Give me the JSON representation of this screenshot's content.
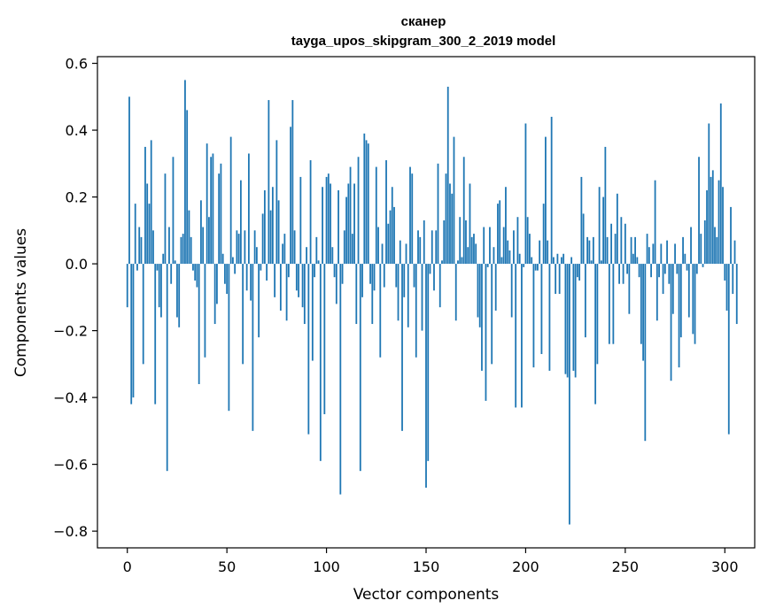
{
  "chart_data": {
    "type": "bar",
    "title": "сканер",
    "subtitle": "tayga_upos_skipgram_300_2_2019 model",
    "xlabel": "Vector components",
    "ylabel": "Components values",
    "xlim": [
      -15,
      315
    ],
    "ylim": [
      -0.85,
      0.62
    ],
    "xticks": [
      0,
      50,
      100,
      150,
      200,
      250,
      300
    ],
    "yticks": [
      -0.8,
      -0.6,
      -0.4,
      -0.2,
      0.0,
      0.2,
      0.4,
      0.6
    ],
    "ytick_labels": [
      "−0.8",
      "−0.6",
      "−0.4",
      "−0.2",
      "0.0",
      "0.2",
      "0.4",
      "0.6"
    ],
    "grid": false,
    "color": "#1f77b4",
    "values": [
      -0.13,
      0.5,
      -0.42,
      -0.4,
      0.18,
      -0.02,
      0.11,
      0.08,
      -0.3,
      0.35,
      0.24,
      0.18,
      0.37,
      0.1,
      -0.42,
      -0.02,
      -0.13,
      -0.16,
      0.03,
      0.27,
      -0.62,
      0.11,
      -0.06,
      0.32,
      0.01,
      -0.16,
      -0.19,
      0.08,
      0.09,
      0.55,
      0.46,
      0.16,
      0.08,
      -0.02,
      -0.05,
      -0.07,
      -0.36,
      0.19,
      0.11,
      -0.28,
      0.36,
      0.14,
      0.32,
      0.33,
      -0.18,
      -0.12,
      0.27,
      0.3,
      0.03,
      -0.06,
      -0.09,
      -0.44,
      0.38,
      0.02,
      -0.03,
      0.1,
      0.09,
      0.25,
      -0.3,
      0.1,
      -0.08,
      0.33,
      -0.11,
      -0.5,
      0.1,
      0.05,
      -0.22,
      -0.02,
      0.15,
      0.22,
      -0.05,
      0.49,
      0.16,
      0.23,
      -0.1,
      0.37,
      0.19,
      -0.14,
      0.06,
      0.09,
      -0.17,
      -0.04,
      0.41,
      0.49,
      0.1,
      -0.08,
      -0.1,
      0.26,
      -0.13,
      -0.18,
      0.05,
      -0.51,
      0.31,
      -0.29,
      -0.04,
      0.08,
      0.01,
      -0.59,
      0.23,
      -0.45,
      0.26,
      0.27,
      0.24,
      0.05,
      -0.04,
      -0.12,
      0.22,
      -0.69,
      -0.06,
      0.1,
      0.2,
      0.24,
      0.29,
      0.09,
      0.24,
      -0.18,
      0.32,
      -0.62,
      -0.1,
      0.39,
      0.37,
      0.36,
      -0.06,
      -0.18,
      -0.08,
      0.29,
      0.11,
      -0.28,
      0.06,
      -0.07,
      0.31,
      0.12,
      0.16,
      0.23,
      0.17,
      -0.07,
      -0.17,
      0.07,
      -0.5,
      -0.1,
      0.06,
      -0.19,
      0.29,
      0.27,
      -0.07,
      -0.28,
      0.1,
      0.08,
      -0.2,
      0.13,
      -0.67,
      -0.59,
      -0.03,
      0.1,
      -0.08,
      0.1,
      0.3,
      -0.13,
      0.01,
      0.13,
      0.27,
      0.53,
      0.24,
      0.21,
      0.38,
      -0.17,
      0.01,
      0.14,
      0.02,
      0.32,
      0.13,
      0.05,
      0.24,
      0.08,
      0.09,
      0.06,
      -0.16,
      -0.19,
      -0.32,
      0.11,
      -0.41,
      -0.01,
      0.11,
      -0.3,
      0.05,
      -0.14,
      0.18,
      0.19,
      0.02,
      0.11,
      0.23,
      0.07,
      0.04,
      -0.16,
      0.1,
      -0.43,
      0.14,
      0.03,
      -0.43,
      -0.01,
      0.42,
      0.14,
      0.09,
      0.02,
      -0.31,
      -0.02,
      -0.02,
      0.07,
      -0.27,
      0.18,
      0.38,
      0.07,
      -0.32,
      0.44,
      0.02,
      -0.09,
      0.03,
      -0.09,
      0.02,
      0.03,
      -0.33,
      -0.34,
      -0.78,
      0.02,
      -0.32,
      -0.34,
      -0.04,
      -0.05,
      0.26,
      0.15,
      -0.22,
      0.08,
      0.07,
      0.01,
      0.08,
      -0.42,
      -0.3,
      0.23,
      0.01,
      0.2,
      0.35,
      0.08,
      -0.24,
      0.12,
      -0.24,
      0.09,
      0.21,
      -0.06,
      0.14,
      -0.06,
      0.12,
      -0.03,
      -0.15,
      0.08,
      0.03,
      0.08,
      0.02,
      -0.04,
      -0.24,
      -0.29,
      -0.53,
      0.09,
      0.05,
      -0.04,
      0.06,
      0.25,
      -0.17,
      -0.04,
      0.06,
      -0.09,
      -0.03,
      0.07,
      -0.06,
      -0.35,
      -0.15,
      0.06,
      -0.03,
      -0.31,
      -0.22,
      0.08,
      0.03,
      -0.02,
      -0.16,
      0.11,
      -0.21,
      -0.24,
      -0.03,
      0.32,
      0.09,
      -0.01,
      0.13,
      0.22,
      0.42,
      0.26,
      0.28,
      0.11,
      0.08,
      0.25,
      0.48,
      0.23,
      -0.05,
      -0.14,
      -0.51,
      0.17,
      -0.09,
      0.07,
      -0.18
    ]
  }
}
